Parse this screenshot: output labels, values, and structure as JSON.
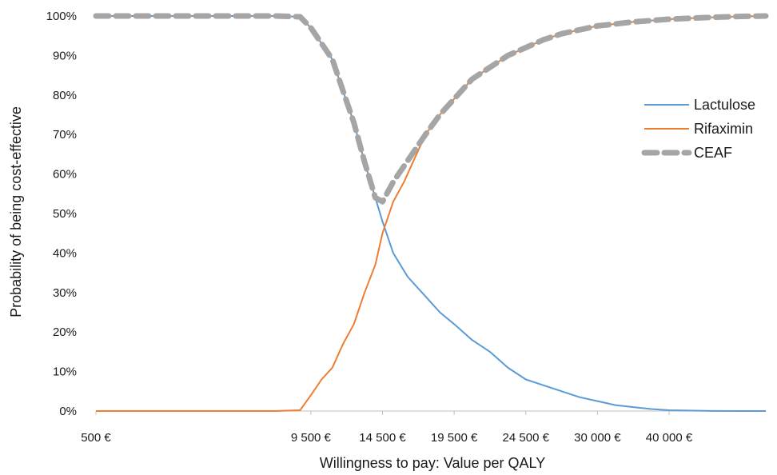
{
  "chart_data": {
    "type": "line",
    "title": "",
    "xlabel": "Willingness to pay: Value per QALY",
    "ylabel": "Probability of being cost-effective",
    "x_tick_labels": [
      "500 €",
      "9 500 €",
      "14 500 €",
      "19 500 €",
      "24 500 €",
      "30 000 €",
      "40 000 €"
    ],
    "y_tick_labels": [
      "0%",
      "10%",
      "20%",
      "30%",
      "40%",
      "50%",
      "60%",
      "70%",
      "80%",
      "90%",
      "100%"
    ],
    "ylim": [
      0,
      100
    ],
    "grid": false,
    "legend_position": "right",
    "x_scale_note": "non-linear (categorical steps)",
    "x_tick_positions_index": [
      0,
      3,
      4,
      5,
      6,
      7,
      8
    ],
    "x_max_index": 9,
    "series": [
      {
        "name": "Lactulose",
        "color": "#5B9BD5",
        "style": "solid",
        "points": [
          [
            0,
            100
          ],
          [
            2.5,
            100
          ],
          [
            2.85,
            99.8
          ],
          [
            3.0,
            97
          ],
          [
            3.3,
            89
          ],
          [
            3.45,
            81
          ],
          [
            3.6,
            73
          ],
          [
            3.75,
            63
          ],
          [
            3.9,
            54
          ],
          [
            4.0,
            48
          ],
          [
            4.15,
            40
          ],
          [
            4.35,
            34
          ],
          [
            4.6,
            29
          ],
          [
            4.8,
            25
          ],
          [
            5.0,
            22
          ],
          [
            5.25,
            18
          ],
          [
            5.5,
            15
          ],
          [
            5.75,
            11
          ],
          [
            6.0,
            8
          ],
          [
            6.25,
            6.5
          ],
          [
            6.5,
            5
          ],
          [
            6.75,
            3.5
          ],
          [
            7.0,
            2.5
          ],
          [
            7.25,
            1.5
          ],
          [
            7.5,
            1
          ],
          [
            7.75,
            0.5
          ],
          [
            8.0,
            0.2
          ],
          [
            8.5,
            0.05
          ],
          [
            9.0,
            0
          ],
          [
            9.35,
            0
          ]
        ]
      },
      {
        "name": "Rifaximin",
        "color": "#ED7D31",
        "style": "solid",
        "points": [
          [
            0,
            0
          ],
          [
            2.5,
            0
          ],
          [
            2.85,
            0.2
          ],
          [
            3.0,
            4
          ],
          [
            3.15,
            8
          ],
          [
            3.3,
            11
          ],
          [
            3.45,
            17
          ],
          [
            3.6,
            22
          ],
          [
            3.75,
            30
          ],
          [
            3.9,
            37
          ],
          [
            4.0,
            45
          ],
          [
            4.15,
            53
          ],
          [
            4.3,
            58
          ],
          [
            4.45,
            64
          ],
          [
            4.6,
            70
          ],
          [
            4.8,
            75
          ],
          [
            5.0,
            79
          ],
          [
            5.25,
            84
          ],
          [
            5.5,
            87
          ],
          [
            5.75,
            90
          ],
          [
            6.0,
            92
          ],
          [
            6.25,
            94
          ],
          [
            6.5,
            95.5
          ],
          [
            6.75,
            96.5
          ],
          [
            7.0,
            97.5
          ],
          [
            7.5,
            98.5
          ],
          [
            8.0,
            99.2
          ],
          [
            8.5,
            99.6
          ],
          [
            9.0,
            99.9
          ],
          [
            9.35,
            100
          ]
        ]
      },
      {
        "name": "CEAF",
        "color": "#A5A5A5",
        "style": "dashed",
        "points": [
          [
            0,
            100
          ],
          [
            2.5,
            100
          ],
          [
            2.85,
            99.8
          ],
          [
            3.0,
            97
          ],
          [
            3.3,
            89
          ],
          [
            3.45,
            81
          ],
          [
            3.6,
            73
          ],
          [
            3.75,
            63
          ],
          [
            3.9,
            54
          ],
          [
            4.0,
            53
          ],
          [
            4.15,
            58
          ],
          [
            4.3,
            62
          ],
          [
            4.45,
            66
          ],
          [
            4.6,
            70
          ],
          [
            4.8,
            75
          ],
          [
            5.0,
            79
          ],
          [
            5.25,
            84
          ],
          [
            5.5,
            87
          ],
          [
            5.75,
            90
          ],
          [
            6.0,
            92
          ],
          [
            6.25,
            94
          ],
          [
            6.5,
            95.5
          ],
          [
            6.75,
            96.5
          ],
          [
            7.0,
            97.5
          ],
          [
            7.5,
            98.5
          ],
          [
            8.0,
            99.2
          ],
          [
            8.5,
            99.6
          ],
          [
            9.0,
            99.9
          ],
          [
            9.35,
            100
          ]
        ]
      }
    ]
  }
}
